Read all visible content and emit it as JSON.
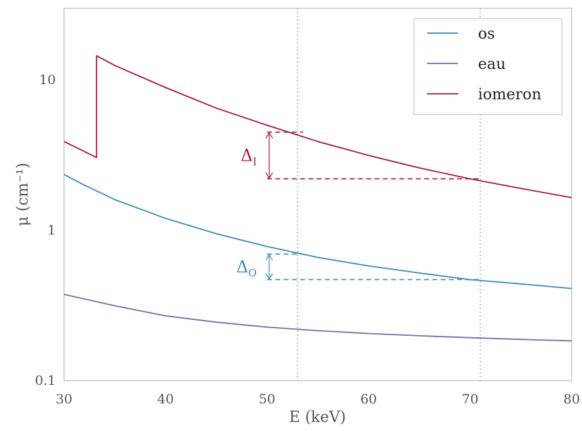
{
  "chart_data": {
    "type": "line",
    "xlabel": "E (keV)",
    "ylabel": "μ (cm⁻¹)",
    "xlim": [
      30,
      80
    ],
    "ylim": [
      0.1,
      30
    ],
    "yscale": "log",
    "grid": false,
    "legend_position": "top-right",
    "x_ticks": [
      30,
      40,
      50,
      60,
      70,
      80
    ],
    "y_ticks": [
      {
        "value": 0.1,
        "label": "0.1"
      },
      {
        "value": 1,
        "label": "1"
      },
      {
        "value": 10,
        "label": "10"
      }
    ],
    "series": [
      {
        "name": "os",
        "color": "#3b8ab8",
        "x": [
          30,
          32,
          35,
          40,
          45,
          50,
          55,
          60,
          65,
          70,
          75,
          80
        ],
        "y": [
          2.35,
          2.0,
          1.6,
          1.2,
          0.95,
          0.78,
          0.66,
          0.58,
          0.52,
          0.47,
          0.44,
          0.41
        ]
      },
      {
        "name": "eau",
        "color": "#7b6aa8",
        "x": [
          30,
          35,
          40,
          45,
          50,
          55,
          60,
          65,
          70,
          75,
          80
        ],
        "y": [
          0.375,
          0.315,
          0.27,
          0.245,
          0.227,
          0.215,
          0.206,
          0.199,
          0.193,
          0.188,
          0.184
        ]
      },
      {
        "name": "iomeron",
        "color": "#a8163f",
        "x": [
          30,
          33.2,
          33.2,
          35,
          40,
          45,
          50,
          55,
          60,
          65,
          70,
          75,
          80
        ],
        "y": [
          3.9,
          3.05,
          14.5,
          12.5,
          8.9,
          6.5,
          5.0,
          3.9,
          3.15,
          2.6,
          2.2,
          1.9,
          1.65
        ]
      }
    ],
    "vlines": [
      53,
      71
    ],
    "annotations": [
      {
        "label": "Δ",
        "sub": "I",
        "color": "#a8163f",
        "x": 50,
        "y_top": 4.5,
        "y_bottom": 2.2,
        "x_end": 71
      },
      {
        "label": "Δ",
        "sub": "O",
        "color": "#3b8ab8",
        "x": 50,
        "y_top": 0.695,
        "y_bottom": 0.47,
        "x_end": 71
      }
    ]
  }
}
